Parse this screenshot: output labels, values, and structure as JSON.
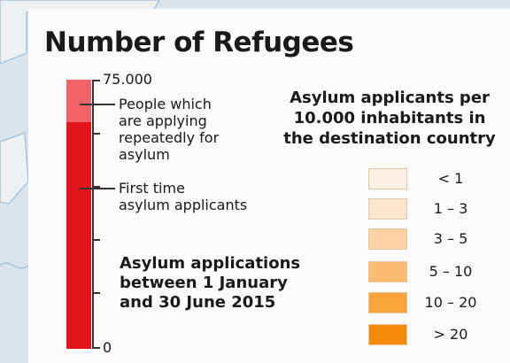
{
  "title": "Number of Refugees",
  "scale": {
    "max_label": "75.000",
    "min_label": "0"
  },
  "bar": {
    "segments": [
      {
        "label": "People which are applying repeatedly for asylum",
        "color": "#f16469"
      },
      {
        "label": "First time asylum applicants",
        "color": "#e3141c"
      }
    ],
    "repeat_label_lines": [
      "People which",
      "are applying",
      "repeatedly for",
      "asylum"
    ],
    "first_label_lines": [
      "First time",
      "asylum applicants"
    ]
  },
  "note_lines": [
    "Asylum applications",
    "between 1 January",
    "and 30 June 2015"
  ],
  "legend": {
    "title_lines": [
      "Asylum applicants per",
      "10.000 inhabitants in",
      "the destination country"
    ],
    "items": [
      {
        "label": "< 1",
        "color": "#fdf0e4"
      },
      {
        "label": "1 – 3",
        "color": "#fde4cc"
      },
      {
        "label": "3 – 5",
        "color": "#fdd3a6"
      },
      {
        "label": "5 – 10",
        "color": "#fcbc72"
      },
      {
        "label": "10 – 20",
        "color": "#f9a43b"
      },
      {
        "label": "> 20",
        "color": "#f38a0a"
      }
    ]
  },
  "map": {
    "land_color": "#eef1f4",
    "water_color": "#d9e4ec",
    "border_color": "#a9c3d8"
  }
}
